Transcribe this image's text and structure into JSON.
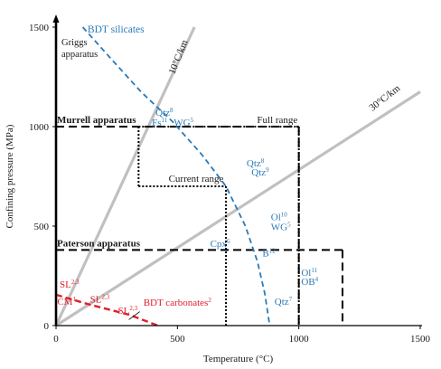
{
  "chart_data": {
    "type": "line",
    "xlabel": "Temperature (°C)",
    "ylabel": "Confining pressure (MPa)",
    "xlim": [
      0,
      1500
    ],
    "ylim": [
      0,
      1500
    ],
    "x_ticks": [
      0,
      500,
      1000,
      1500
    ],
    "y_ticks": [
      0,
      500,
      1000,
      1500
    ],
    "grid": false,
    "colors": {
      "geotherm": "#c0c0c0",
      "silicates": "#2a7ab8",
      "carbonates": "#e0202a",
      "apparatus": "#000000",
      "text": "#1a1a1a"
    },
    "geotherms": [
      {
        "label": "10°C/km",
        "points": [
          [
            0,
            0
          ],
          [
            570,
            1500
          ]
        ]
      },
      {
        "label": "30°C/km",
        "points": [
          [
            0,
            0
          ],
          [
            1500,
            1175
          ]
        ]
      }
    ],
    "transitions": [
      {
        "label": "BDT silicates",
        "points": [
          [
            110,
            1500
          ],
          [
            220,
            1350
          ],
          [
            350,
            1175
          ],
          [
            480,
            1025
          ],
          [
            600,
            860
          ],
          [
            700,
            700
          ],
          [
            780,
            500
          ],
          [
            830,
            320
          ],
          [
            860,
            160
          ],
          [
            880,
            0
          ]
        ]
      },
      {
        "label": "BDT carbonates",
        "sup": "2",
        "points": [
          [
            0,
            155
          ],
          [
            140,
            105
          ],
          [
            300,
            55
          ],
          [
            420,
            0
          ]
        ]
      }
    ],
    "apparatus": [
      {
        "label": "Griggs apparatus",
        "y": 1500
      },
      {
        "label": "Murrell apparatus",
        "xmax": 1000,
        "ymax": 1000
      },
      {
        "label": "Full range",
        "x": [
          340,
          1000
        ],
        "ymax": 1000
      },
      {
        "label": "Current range",
        "x": [
          340,
          700
        ],
        "y": [
          700,
          1000
        ]
      },
      {
        "label": "Paterson apparatus",
        "xmax": 1000,
        "ymax": 380,
        "xright": 1180
      }
    ],
    "annotations": [
      {
        "text": "Qtz",
        "sup": "8",
        "x": 410,
        "y": 1055,
        "color": "#2a7ab8"
      },
      {
        "text": "Fs",
        "sup": "11",
        "x": 395,
        "y": 1005,
        "color": "#2a7ab8"
      },
      {
        "text": "WG",
        "sup": "5",
        "x": 485,
        "y": 1005,
        "color": "#2a7ab8"
      },
      {
        "text": "Qtz",
        "sup": "8",
        "x": 785,
        "y": 800,
        "color": "#2a7ab8"
      },
      {
        "text": "Qtz",
        "sup": "9",
        "x": 805,
        "y": 755,
        "color": "#2a7ab8"
      },
      {
        "text": "Ol",
        "sup": "10",
        "x": 885,
        "y": 530,
        "color": "#2a7ab8"
      },
      {
        "text": "WG",
        "sup": "5",
        "x": 885,
        "y": 480,
        "color": "#2a7ab8"
      },
      {
        "text": "Cpx",
        "sup": "6",
        "x": 635,
        "y": 395,
        "color": "#2a7ab8"
      },
      {
        "text": "B",
        "sup": "12",
        "x": 850,
        "y": 348,
        "color": "#2a7ab8"
      },
      {
        "text": "Ol",
        "sup": "11",
        "x": 1010,
        "y": 250,
        "color": "#2a7ab8"
      },
      {
        "text": "OB",
        "sup": "4",
        "x": 1010,
        "y": 205,
        "color": "#2a7ab8"
      },
      {
        "text": "Qtz",
        "sup": "7",
        "x": 900,
        "y": 105,
        "color": "#2a7ab8"
      },
      {
        "text": "SL",
        "sup": "2,3",
        "x": 15,
        "y": 190,
        "color": "#e0202a"
      },
      {
        "text": "CM",
        "sup": "1",
        "x": 5,
        "y": 105,
        "color": "#e0202a"
      },
      {
        "text": "SL",
        "sup": "2,3",
        "x": 140,
        "y": 115,
        "color": "#e0202a"
      },
      {
        "text": "SL",
        "sup": "2,3",
        "x": 255,
        "y": 60,
        "color": "#e0202a"
      }
    ]
  }
}
